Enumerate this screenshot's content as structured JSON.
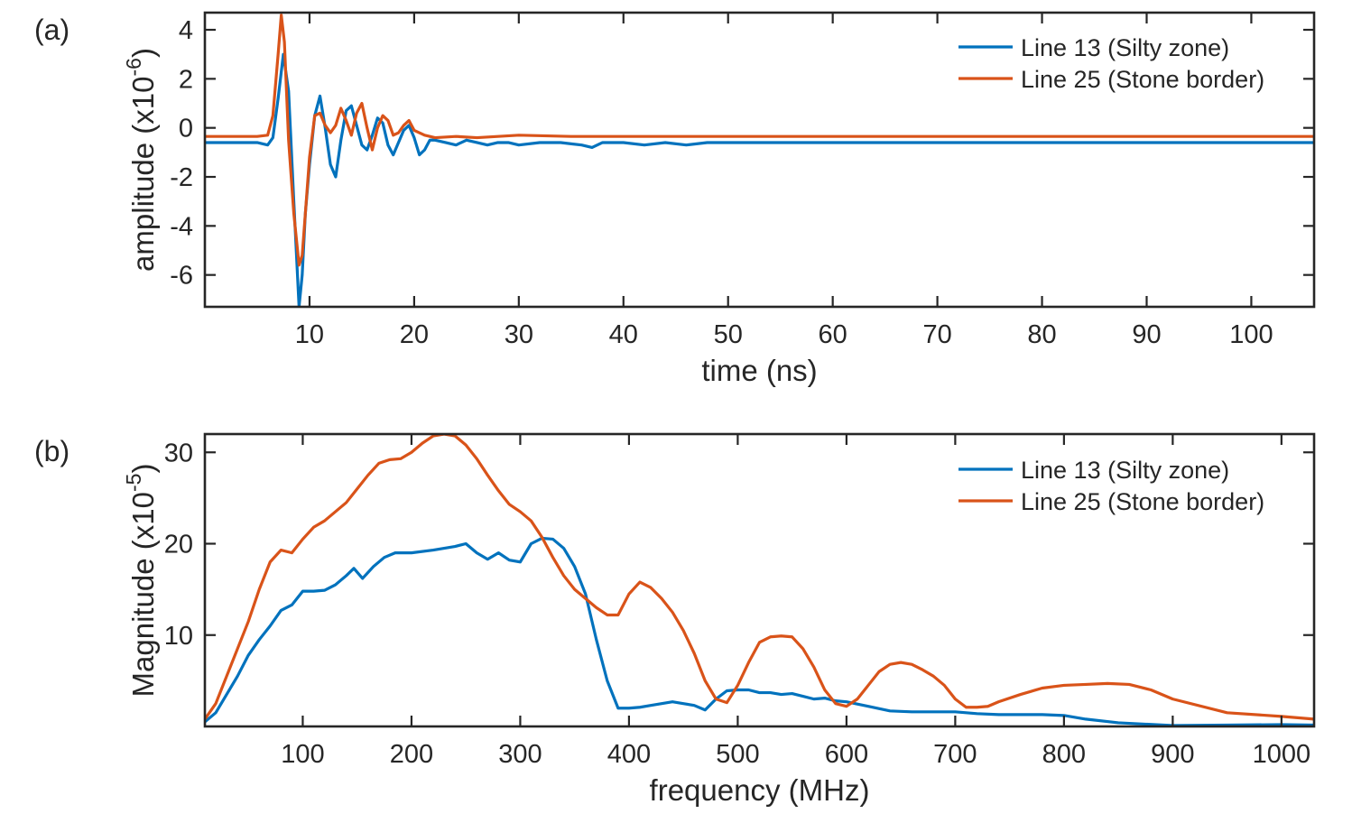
{
  "chart_data": [
    {
      "panel_label": "(a)",
      "type": "line",
      "xlabel": "time (ns)",
      "ylabel": "amplitude (x10",
      "ylabel_exp": "-6",
      "ylabel_close": ")",
      "xlim": [
        0,
        106
      ],
      "ylim": [
        -7.3,
        4.7
      ],
      "xticks": [
        10,
        20,
        30,
        40,
        50,
        60,
        70,
        80,
        90,
        100
      ],
      "yticks": [
        -6,
        -4,
        -2,
        0,
        2,
        4
      ],
      "grid": false,
      "legend": "top-right",
      "series": [
        {
          "name": "Line 13 (Silty zone)",
          "color": "#0072BD",
          "x": [
            0,
            5,
            6,
            6.5,
            7,
            7.5,
            8,
            8.5,
            9,
            9.3,
            9.6,
            10,
            10.5,
            11,
            11.5,
            12,
            12.5,
            13,
            13.5,
            14,
            14.5,
            15,
            15.5,
            16,
            16.5,
            17,
            17.5,
            18,
            18.5,
            19,
            19.5,
            20,
            20.5,
            21,
            21.5,
            22,
            23,
            24,
            25,
            26,
            27,
            28,
            29,
            30,
            32,
            34,
            36,
            37,
            38,
            40,
            42,
            44,
            46,
            48,
            50,
            55,
            60,
            65,
            70,
            75,
            80,
            85,
            90,
            95,
            100,
            106
          ],
          "y": [
            -0.6,
            -0.6,
            -0.7,
            -0.4,
            1.2,
            3.0,
            1.5,
            -3.0,
            -7.3,
            -6.0,
            -3.5,
            -1.5,
            0.5,
            1.3,
            0.0,
            -1.5,
            -2.0,
            -0.5,
            0.7,
            0.9,
            0.1,
            -0.7,
            -0.9,
            -0.3,
            0.4,
            0.2,
            -0.7,
            -1.1,
            -0.6,
            -0.1,
            0.1,
            -0.4,
            -1.1,
            -0.9,
            -0.5,
            -0.5,
            -0.6,
            -0.7,
            -0.5,
            -0.6,
            -0.7,
            -0.6,
            -0.6,
            -0.7,
            -0.6,
            -0.6,
            -0.7,
            -0.8,
            -0.6,
            -0.6,
            -0.7,
            -0.6,
            -0.7,
            -0.6,
            -0.6,
            -0.6,
            -0.6,
            -0.6,
            -0.6,
            -0.6,
            -0.6,
            -0.6,
            -0.6,
            -0.6,
            -0.6,
            -0.6
          ]
        },
        {
          "name": "Line 25 (Stone border)",
          "color": "#D95319",
          "x": [
            0,
            5,
            6,
            6.5,
            7,
            7.3,
            7.6,
            8,
            8.5,
            9,
            9.3,
            9.6,
            10,
            10.5,
            11,
            11.5,
            12,
            12.5,
            13,
            13.5,
            14,
            14.5,
            15,
            15.5,
            16,
            16.5,
            17,
            17.5,
            18,
            18.5,
            19,
            19.5,
            20,
            21,
            22,
            24,
            26,
            28,
            30,
            35,
            40,
            50,
            60,
            70,
            80,
            90,
            100,
            106
          ],
          "y": [
            -0.35,
            -0.35,
            -0.3,
            0.5,
            3.0,
            4.6,
            3.5,
            -0.5,
            -3.5,
            -5.6,
            -5.2,
            -3.5,
            -1.2,
            0.5,
            0.6,
            0.1,
            -0.2,
            0.1,
            0.8,
            0.3,
            -0.3,
            0.6,
            1.0,
            0.0,
            -0.9,
            0.0,
            0.5,
            0.3,
            -0.3,
            -0.2,
            0.1,
            0.3,
            -0.1,
            -0.3,
            -0.4,
            -0.35,
            -0.4,
            -0.35,
            -0.3,
            -0.35,
            -0.35,
            -0.35,
            -0.35,
            -0.35,
            -0.35,
            -0.35,
            -0.35,
            -0.35
          ]
        }
      ]
    },
    {
      "panel_label": "(b)",
      "type": "line",
      "xlabel": "frequency (MHz)",
      "ylabel": "Magnitude (x10",
      "ylabel_exp": "-5",
      "ylabel_close": ")",
      "xlim": [
        10,
        1030
      ],
      "ylim": [
        0,
        32
      ],
      "xticks": [
        100,
        200,
        300,
        400,
        500,
        600,
        700,
        800,
        900,
        1000
      ],
      "yticks": [
        10,
        20,
        30
      ],
      "grid": false,
      "legend": "top-right",
      "series": [
        {
          "name": "Line 13 (Silty zone)",
          "color": "#0072BD",
          "x": [
            10,
            20,
            30,
            40,
            50,
            60,
            70,
            80,
            90,
            100,
            110,
            120,
            130,
            140,
            147,
            155,
            165,
            175,
            185,
            200,
            220,
            240,
            250,
            260,
            270,
            280,
            290,
            300,
            310,
            320,
            330,
            340,
            350,
            360,
            370,
            380,
            390,
            400,
            410,
            420,
            430,
            440,
            450,
            460,
            470,
            480,
            490,
            500,
            510,
            520,
            530,
            540,
            550,
            560,
            570,
            580,
            590,
            600,
            620,
            640,
            660,
            680,
            700,
            720,
            740,
            760,
            780,
            800,
            820,
            850,
            900,
            950,
            1000,
            1030
          ],
          "y": [
            0.5,
            1.5,
            3.5,
            5.5,
            7.8,
            9.5,
            11,
            12.7,
            13.3,
            14.8,
            14.8,
            14.9,
            15.5,
            16.5,
            17.3,
            16.2,
            17.5,
            18.5,
            19.0,
            19.0,
            19.3,
            19.7,
            20.0,
            19.0,
            18.3,
            19.0,
            18.2,
            18.0,
            20.0,
            20.6,
            20.5,
            19.5,
            17.5,
            14.5,
            9.5,
            5.0,
            2.0,
            2.0,
            2.1,
            2.3,
            2.5,
            2.7,
            2.5,
            2.3,
            1.8,
            3.0,
            3.9,
            4.0,
            4.0,
            3.7,
            3.7,
            3.5,
            3.6,
            3.3,
            3.0,
            3.1,
            2.8,
            2.7,
            2.2,
            1.7,
            1.6,
            1.6,
            1.6,
            1.4,
            1.3,
            1.3,
            1.3,
            1.2,
            0.8,
            0.4,
            0.1,
            0.15,
            0.2,
            0.15
          ]
        },
        {
          "name": "Line 25 (Stone border)",
          "color": "#D95319",
          "x": [
            10,
            20,
            30,
            40,
            50,
            60,
            70,
            80,
            90,
            100,
            110,
            120,
            130,
            140,
            150,
            160,
            170,
            180,
            190,
            200,
            210,
            220,
            230,
            240,
            250,
            260,
            270,
            280,
            290,
            300,
            310,
            320,
            330,
            340,
            350,
            360,
            370,
            380,
            390,
            400,
            410,
            420,
            430,
            440,
            450,
            460,
            470,
            480,
            490,
            500,
            510,
            520,
            530,
            540,
            550,
            560,
            570,
            580,
            590,
            600,
            610,
            620,
            630,
            640,
            650,
            660,
            670,
            680,
            690,
            700,
            710,
            720,
            730,
            740,
            760,
            780,
            800,
            820,
            840,
            860,
            880,
            900,
            950,
            1000,
            1030
          ],
          "y": [
            0.8,
            2.5,
            5.5,
            8.5,
            11.5,
            15,
            18,
            19.3,
            19.0,
            20.5,
            21.8,
            22.5,
            23.5,
            24.5,
            26,
            27.5,
            28.8,
            29.2,
            29.3,
            30.0,
            31.0,
            31.8,
            32.0,
            31.8,
            30.8,
            29.3,
            27.5,
            25.8,
            24.3,
            23.5,
            22.5,
            20.7,
            18.5,
            16.5,
            15.0,
            14.0,
            13.0,
            12.2,
            12.2,
            14.5,
            15.8,
            15.2,
            14.0,
            12.5,
            10.5,
            8.0,
            5.0,
            3.0,
            2.6,
            4.5,
            7.0,
            9.2,
            9.8,
            9.9,
            9.8,
            8.5,
            6.5,
            4.0,
            2.5,
            2.2,
            3.0,
            4.5,
            6.0,
            6.8,
            7.0,
            6.8,
            6.2,
            5.5,
            4.5,
            3.0,
            2.1,
            2.1,
            2.2,
            2.7,
            3.5,
            4.2,
            4.5,
            4.6,
            4.7,
            4.6,
            4.0,
            3.0,
            1.5,
            1.1,
            0.8
          ]
        }
      ]
    }
  ]
}
